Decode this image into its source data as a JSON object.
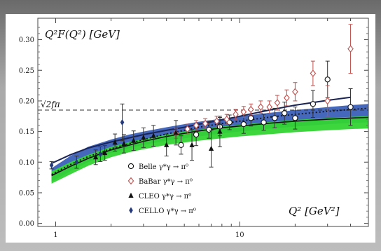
{
  "chart_data": {
    "type": "scatter",
    "title": "",
    "ylabel": "Q²F(Q²) [GeV]",
    "xlabel": "Q² [GeV²]",
    "xscale": "log",
    "xlim": [
      0.8,
      50
    ],
    "ylim": [
      -0.005,
      0.335
    ],
    "xticks": [
      "1",
      "10"
    ],
    "yticks": [
      "0.00",
      "0.05",
      "0.10",
      "0.15",
      "0.20",
      "0.25",
      "0.30"
    ],
    "grid": false,
    "legend_position": "center-right",
    "reference_line": {
      "label": "√2fπ",
      "y": 0.185
    },
    "bands": [
      {
        "color": "#3b5fb8",
        "x": [
          0.95,
          1.2,
          1.5,
          2,
          2.5,
          3,
          4,
          5,
          6,
          8,
          10,
          15,
          20,
          30,
          40,
          50
        ],
        "upper": [
          0.09,
          0.11,
          0.125,
          0.137,
          0.145,
          0.15,
          0.157,
          0.162,
          0.166,
          0.171,
          0.175,
          0.181,
          0.185,
          0.19,
          0.193,
          0.195
        ],
        "lower": [
          0.068,
          0.085,
          0.1,
          0.115,
          0.123,
          0.128,
          0.135,
          0.139,
          0.142,
          0.147,
          0.15,
          0.155,
          0.158,
          0.162,
          0.164,
          0.165
        ]
      },
      {
        "color": "#33d433",
        "x": [
          0.95,
          1.2,
          1.5,
          2,
          2.5,
          3,
          4,
          5,
          6,
          8,
          10,
          15,
          20,
          30,
          40,
          50
        ],
        "upper": [
          0.085,
          0.1,
          0.112,
          0.125,
          0.133,
          0.138,
          0.145,
          0.15,
          0.153,
          0.158,
          0.161,
          0.166,
          0.169,
          0.172,
          0.174,
          0.175
        ],
        "lower": [
          0.065,
          0.08,
          0.094,
          0.108,
          0.116,
          0.121,
          0.128,
          0.132,
          0.135,
          0.139,
          0.142,
          0.146,
          0.149,
          0.152,
          0.154,
          0.155
        ]
      }
    ],
    "curves": [
      {
        "style": "solid-black",
        "x": [
          0.95,
          1.2,
          1.5,
          2,
          3,
          4,
          5,
          6,
          8,
          10,
          15,
          20,
          30,
          40,
          50
        ],
        "y": [
          0.078,
          0.093,
          0.106,
          0.12,
          0.134,
          0.142,
          0.147,
          0.151,
          0.156,
          0.159,
          0.164,
          0.167,
          0.17,
          0.172,
          0.173
        ]
      },
      {
        "style": "dotted-black",
        "x": [
          0.95,
          1.2,
          1.5,
          2,
          3,
          4,
          5,
          6,
          8,
          10,
          15,
          20,
          30,
          40,
          50
        ],
        "y": [
          0.08,
          0.096,
          0.109,
          0.122,
          0.137,
          0.146,
          0.152,
          0.157,
          0.163,
          0.167,
          0.174,
          0.178,
          0.183,
          0.186,
          0.188
        ]
      },
      {
        "style": "solid-navy",
        "x": [
          0.95,
          1.2,
          1.5,
          2,
          3,
          4,
          5,
          6,
          8,
          10,
          15,
          20,
          30,
          40
        ],
        "y": [
          0.098,
          0.112,
          0.123,
          0.133,
          0.145,
          0.152,
          0.157,
          0.162,
          0.169,
          0.175,
          0.186,
          0.193,
          0.201,
          0.206
        ]
      }
    ],
    "series": [
      {
        "name": "Belle γ*γ → π⁰",
        "marker": "open-circle",
        "color": "#111111",
        "points": [
          [
            4.8,
            0.128,
            0.015
          ],
          [
            5.8,
            0.145,
            0.018
          ],
          [
            6.8,
            0.153,
            0.014
          ],
          [
            7.8,
            0.158,
            0.015
          ],
          [
            8.8,
            0.165,
            0.012
          ],
          [
            10.5,
            0.162,
            0.015
          ],
          [
            11.5,
            0.172,
            0.013
          ],
          [
            13.5,
            0.165,
            0.013
          ],
          [
            15.5,
            0.172,
            0.016
          ],
          [
            17.5,
            0.18,
            0.018
          ],
          [
            20,
            0.172,
            0.018
          ],
          [
            25,
            0.195,
            0.022
          ],
          [
            30,
            0.235,
            0.03
          ],
          [
            40,
            0.19,
            0.03
          ]
        ]
      },
      {
        "name": "BaBar γ*γ → π⁰",
        "marker": "open-diamond",
        "color": "#c0504d",
        "points": [
          [
            4.5,
            0.147,
            0.008
          ],
          [
            5.2,
            0.154,
            0.008
          ],
          [
            5.8,
            0.16,
            0.008
          ],
          [
            6.5,
            0.163,
            0.008
          ],
          [
            7.5,
            0.167,
            0.008
          ],
          [
            8.5,
            0.17,
            0.008
          ],
          [
            9.5,
            0.178,
            0.008
          ],
          [
            10.5,
            0.182,
            0.009
          ],
          [
            11.5,
            0.186,
            0.009
          ],
          [
            13,
            0.19,
            0.01
          ],
          [
            14.5,
            0.19,
            0.01
          ],
          [
            16,
            0.197,
            0.012
          ],
          [
            18,
            0.205,
            0.013
          ],
          [
            20,
            0.215,
            0.015
          ],
          [
            25,
            0.245,
            0.02
          ],
          [
            30,
            0.2,
            0.025
          ],
          [
            40,
            0.285,
            0.04
          ]
        ]
      },
      {
        "name": "CLEO γ*γ → π⁰",
        "marker": "filled-triangle",
        "color": "#111111",
        "points": [
          [
            1.65,
            0.108,
            0.012
          ],
          [
            1.85,
            0.115,
            0.012
          ],
          [
            2.1,
            0.132,
            0.014
          ],
          [
            2.35,
            0.13,
            0.015
          ],
          [
            2.65,
            0.135,
            0.016
          ],
          [
            3.0,
            0.14,
            0.016
          ],
          [
            3.4,
            0.143,
            0.017
          ],
          [
            4.0,
            0.128,
            0.018
          ],
          [
            4.5,
            0.148,
            0.02
          ],
          [
            5.5,
            0.128,
            0.025
          ],
          [
            7.0,
            0.122,
            0.03
          ],
          [
            7.8,
            0.15,
            0.025
          ]
        ]
      },
      {
        "name": "CELLO γ*γ → π⁰",
        "marker": "filled-diamond",
        "color": "#243a7a",
        "points": [
          [
            0.95,
            0.095,
            0.006
          ],
          [
            1.3,
            0.1,
            0.01
          ],
          [
            1.75,
            0.113,
            0.012
          ],
          [
            2.3,
            0.165,
            0.03
          ]
        ]
      }
    ]
  }
}
